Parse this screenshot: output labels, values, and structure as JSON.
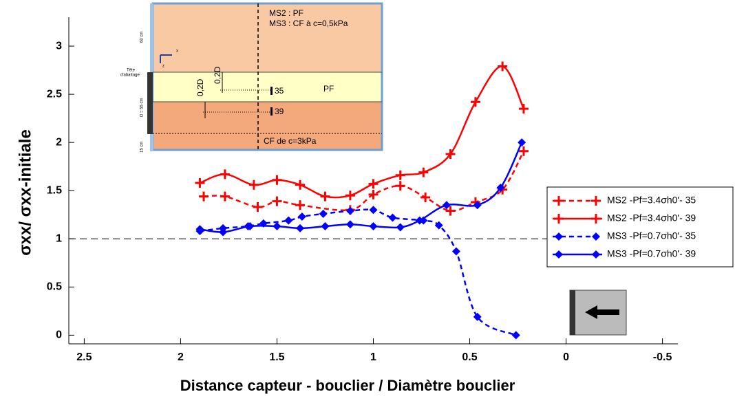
{
  "chart_data": {
    "type": "line",
    "x_label": "Distance capteur - bouclier / Diamètre bouclier",
    "y_label": "σxx/ σxx-initiale",
    "xlim": [
      2.58,
      -0.58
    ],
    "xticks": [
      2.5,
      2,
      1.5,
      1,
      0.5,
      0,
      -0.5
    ],
    "ylim": [
      -0.09,
      3.3
    ],
    "yticks": [
      0,
      0.5,
      1,
      1.5,
      2,
      2.5,
      3
    ],
    "reference_line": 1,
    "series": [
      {
        "name": "MS2 -Pf=3.4σh0'- 35",
        "color": "#ff0000",
        "dash": true,
        "marker": "plus",
        "x": [
          1.88,
          1.77,
          1.6,
          1.5,
          1.38,
          1.12,
          1.0,
          0.86,
          0.73,
          0.6,
          0.47,
          0.33,
          0.22
        ],
        "values": [
          1.44,
          1.44,
          1.33,
          1.39,
          1.35,
          1.3,
          1.46,
          1.55,
          1.43,
          1.29,
          1.38,
          1.51,
          1.91
        ]
      },
      {
        "name": "MS2 -Pf=3.4σh0'- 39",
        "color": "#ff0000",
        "dash": false,
        "marker": "plus",
        "x": [
          1.9,
          1.77,
          1.62,
          1.5,
          1.38,
          1.25,
          1.12,
          1.0,
          0.86,
          0.74,
          0.6,
          0.47,
          0.33,
          0.22
        ],
        "values": [
          1.58,
          1.67,
          1.56,
          1.61,
          1.56,
          1.44,
          1.45,
          1.57,
          1.66,
          1.69,
          1.88,
          2.42,
          2.79,
          2.35
        ]
      },
      {
        "name": "MS3 -Pf=0.7σh0'- 35",
        "color": "#0000ff",
        "dash": true,
        "marker": "diamond",
        "x": [
          1.9,
          1.78,
          1.65,
          1.57,
          1.44,
          1.37,
          1.26,
          1.12,
          1.0,
          0.9,
          0.74,
          0.66,
          0.57,
          0.46,
          0.26
        ],
        "values": [
          1.08,
          1.11,
          1.13,
          1.16,
          1.19,
          1.23,
          1.26,
          1.29,
          1.3,
          1.22,
          1.19,
          1.14,
          0.87,
          0.19,
          0.0
        ]
      },
      {
        "name": "MS3 -Pf=0.7σh0'- 39",
        "color": "#0000ff",
        "dash": false,
        "marker": "diamond",
        "x": [
          1.9,
          1.78,
          1.64,
          1.5,
          1.38,
          1.25,
          1.12,
          1.0,
          0.86,
          0.76,
          0.62,
          0.46,
          0.34,
          0.23
        ],
        "values": [
          1.1,
          1.07,
          1.13,
          1.13,
          1.11,
          1.13,
          1.15,
          1.13,
          1.12,
          1.19,
          1.35,
          1.35,
          1.53,
          2.0
        ]
      }
    ],
    "inset": {
      "top_text_1": "MS2 : PF",
      "top_text_2": "MS3 : CF à c=0,5kPa",
      "middle_text": "PF",
      "bottom_text": "CF de c=3kPa",
      "sensor_1": "35",
      "sensor_2": "39",
      "offset_1": "0,2D",
      "offset_2": "0,2D",
      "axis_x": "x",
      "axis_z": "z",
      "dim_top": "60 cm",
      "head_1": "Tête",
      "head_2": "d'abattage",
      "dim_mid": "D = 55 cm",
      "dim_bottom": "15 cm"
    }
  }
}
